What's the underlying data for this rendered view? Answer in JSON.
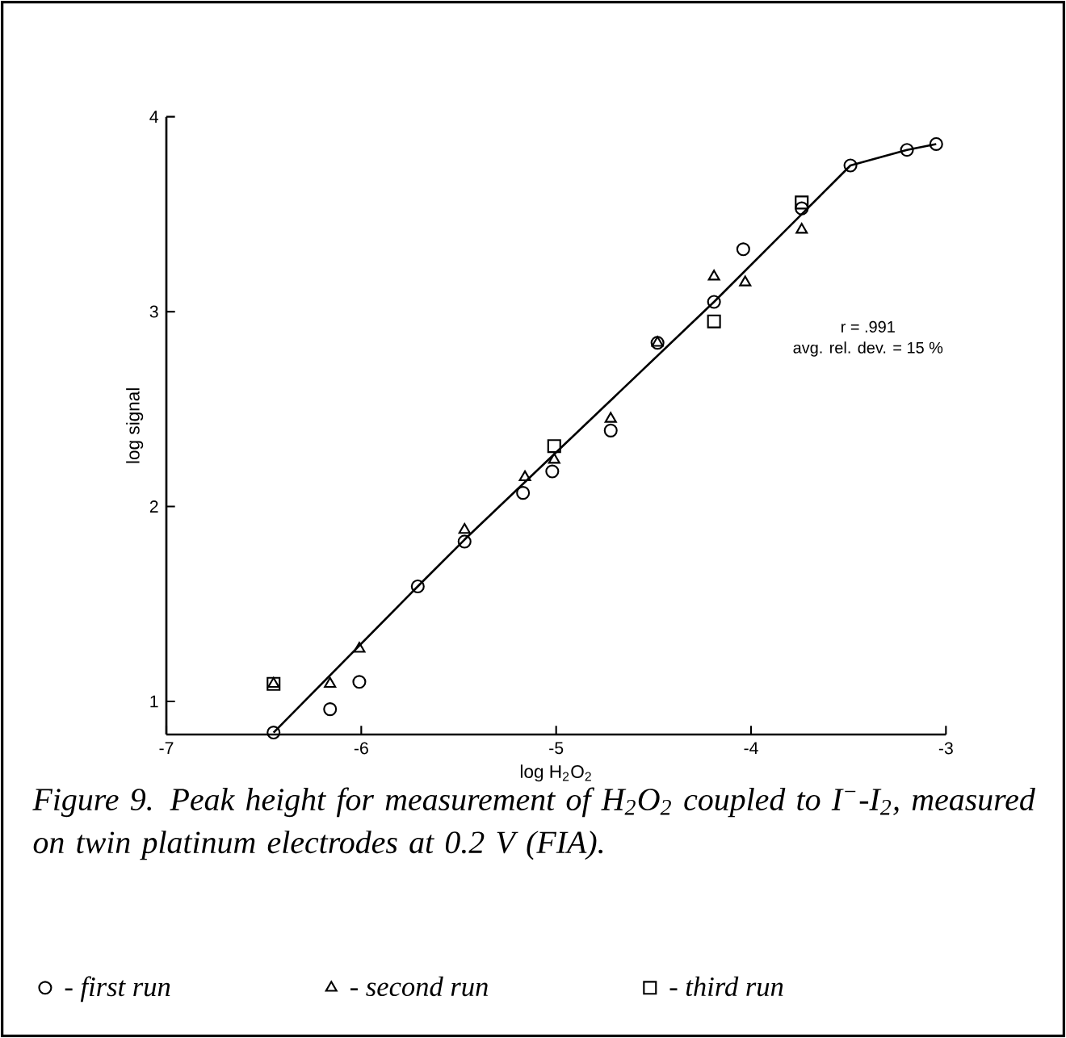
{
  "chart_data": {
    "type": "scatter",
    "xlabel": "log H$_{2}$O$_{2}$",
    "ylabel": "log signal",
    "annotations": [
      "Figure 9.   Peak height for measurement of H$_{2}$O$_{2}$ coupled to I$^{−}$-I$_{2}$, measured on twin platinum electrodes at 0.2 V (FIA).",
      "r = .991",
      "avg. rel. dev. = 15 %"
    ],
    "xlim": [
      -7,
      -3
    ],
    "ylim": [
      0.83,
      4
    ],
    "xticks": [
      -7,
      -6,
      -5,
      -4,
      -3
    ],
    "yticks": [
      1,
      2,
      3,
      4
    ],
    "grid": false,
    "legend": "bottom",
    "series": [
      {
        "name": "- first run",
        "color": "#000000",
        "marker": "circle",
        "x": [
          -6.45,
          -6.16,
          -6.01,
          -5.71,
          -5.47,
          -5.17,
          -5.02,
          -4.72,
          -4.48,
          -4.19,
          -4.04,
          -3.74,
          -3.49,
          -3.2,
          -3.05
        ],
        "values": [
          0.84,
          0.96,
          1.1,
          1.59,
          1.82,
          2.07,
          2.18,
          2.39,
          2.84,
          3.05,
          3.32,
          3.53,
          3.75,
          3.83,
          3.86
        ]
      },
      {
        "name": "- second run",
        "color": "#000000",
        "marker": "triangle",
        "x": [
          -6.45,
          -6.16,
          -6.01,
          -5.47,
          -5.16,
          -5.01,
          -4.72,
          -4.48,
          -4.19,
          -4.03,
          -3.74
        ],
        "values": [
          1.09,
          1.09,
          1.27,
          1.88,
          2.15,
          2.24,
          2.45,
          2.84,
          3.18,
          3.15,
          3.42
        ]
      },
      {
        "name": "- third run",
        "color": "#000000",
        "marker": "square",
        "x": [
          -6.45,
          -5.01,
          -4.19,
          -3.74
        ],
        "values": [
          1.09,
          2.31,
          2.95,
          3.56
        ]
      },
      {
        "type": "line",
        "color": "#000000",
        "marker": "none",
        "line_style": "solid",
        "x": [
          -6.45,
          -5.71,
          -5.47,
          -4.19,
          -3.74,
          -3.49,
          -3.2,
          -3.05
        ],
        "values": [
          0.84,
          1.59,
          1.83,
          3.05,
          3.5,
          3.75,
          3.83,
          3.86
        ]
      }
    ]
  }
}
